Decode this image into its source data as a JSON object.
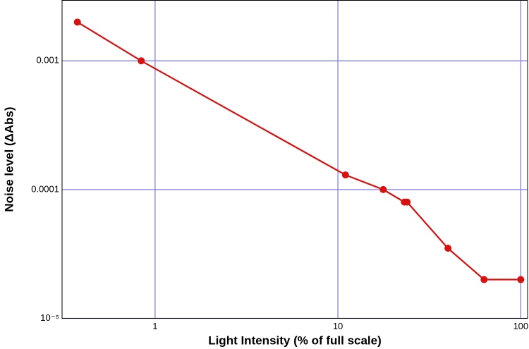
{
  "chart_data": {
    "type": "line",
    "x_label": "Light Intensity (% of full scale)",
    "y_label": "Noise level (ΔAbs)",
    "log_x": true,
    "log_y": true,
    "grid": true,
    "grid_color": "#7f7fe8",
    "xlim": [
      0.31,
      109
    ],
    "ylim": [
      1e-05,
      0.00295
    ],
    "xticks": [
      1,
      10,
      100
    ],
    "yticks": [
      {
        "value": 1e-05,
        "label": "10⁻⁵"
      },
      0.0001,
      0.001
    ],
    "x": [
      0.376,
      0.84,
      11.0,
      17.7,
      23.1,
      23.9,
      40,
      63,
      100
    ],
    "series": [
      {
        "color": "#d91010",
        "values": [
          0.002,
          0.001,
          0.00013,
          0.0001,
          8e-05,
          8e-05,
          3.5e-05,
          2e-05,
          2e-05
        ]
      }
    ]
  }
}
